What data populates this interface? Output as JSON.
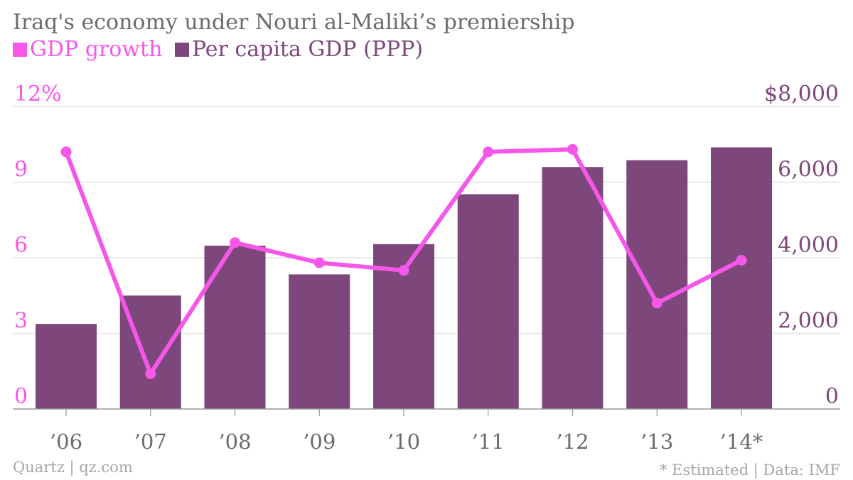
{
  "header": {
    "title": "Iraq's economy under Nouri al-Maliki’s premiership"
  },
  "footer": {
    "source_left": "Quartz | qz.com",
    "source_right": "* Estimated | Data: IMF"
  },
  "colors": {
    "gdp_growth": "#f657e9",
    "per_capita": "#7d477c",
    "grid": "#e4e4e4",
    "axis": "#999999",
    "text": "#6b6b6b"
  },
  "chart_data": {
    "type": "bar",
    "categories": [
      "’06",
      "’07",
      "’08",
      "’09",
      "’10",
      "’11",
      "’12",
      "’13",
      "’14*"
    ],
    "series": [
      {
        "name": "Per capita GDP (PPP)",
        "type": "bar",
        "axis": "right",
        "values": [
          2250,
          3000,
          4320,
          3560,
          4360,
          5680,
          6400,
          6580,
          6920
        ]
      },
      {
        "name": "GDP growth",
        "type": "line",
        "axis": "left",
        "values": [
          10.2,
          1.4,
          6.6,
          5.8,
          5.5,
          10.2,
          10.3,
          4.2,
          5.9
        ]
      }
    ],
    "y_left": {
      "lim": [
        0,
        12
      ],
      "ticks": [
        0,
        3,
        6,
        9
      ],
      "tick_labels": [
        "0",
        "3",
        "6",
        "9"
      ],
      "top_label": "12%"
    },
    "y_right": {
      "lim": [
        0,
        8000
      ],
      "ticks": [
        0,
        2000,
        4000,
        6000
      ],
      "tick_labels": [
        "0",
        "2,000",
        "4,000",
        "6,000"
      ],
      "top_label": "$8,000"
    },
    "grid": true,
    "legend_position": "top-left"
  }
}
